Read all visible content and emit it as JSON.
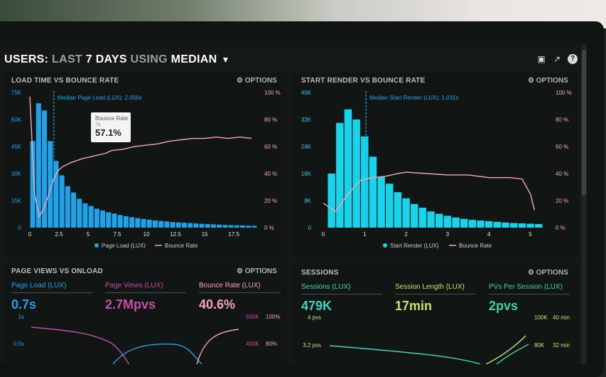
{
  "header": {
    "title_users": "USERS:",
    "title_last": "LAST",
    "title_days": "7 DAYS",
    "title_using": "USING",
    "title_median": "MEDIAN",
    "icons": [
      "monitor-icon",
      "share-icon",
      "help-icon"
    ]
  },
  "panels": {
    "load_time": {
      "title": "LOAD TIME VS BOUNCE RATE",
      "options": "OPTIONS"
    },
    "start_render": {
      "title": "START RENDER VS BOUNCE RATE",
      "options": "OPTIONS"
    },
    "page_views": {
      "title": "PAGE VIEWS VS ONLOAD",
      "options": "OPTIONS"
    },
    "sessions": {
      "title": "SESSIONS",
      "options": "OPTIONS"
    }
  },
  "tooltip": {
    "title": "Bounce Rate",
    "sub": "7s",
    "value": "57.1%"
  },
  "chart_data": [
    {
      "type": "bar",
      "title": "LOAD TIME VS BOUNCE RATE",
      "y_ticks": [
        "75K",
        "60K",
        "45K",
        "30K",
        "15K",
        "0"
      ],
      "y2_ticks": [
        "100 %",
        "80 %",
        "60 %",
        "40 %",
        "20 %",
        "0 %"
      ],
      "x_ticks": [
        "0",
        "2.5",
        "5",
        "7.5",
        "10",
        "12.5",
        "15",
        "17.5"
      ],
      "ylim": [
        0,
        75000
      ],
      "y2lim": [
        0,
        100
      ],
      "median_label": "Median Page Load (LUX): 2.056s",
      "median_x": 2.056,
      "xlim": [
        0,
        19.5
      ],
      "bar_width": 0.5,
      "series": [
        {
          "name": "Page Load (LUX)",
          "x": [
            0,
            0.5,
            1,
            1.5,
            2,
            2.5,
            3,
            3.5,
            4,
            4.5,
            5,
            5.5,
            6,
            6.5,
            7,
            7.5,
            8,
            8.5,
            9,
            9.5,
            10,
            10.5,
            11,
            11.5,
            12,
            12.5,
            13,
            13.5,
            14,
            14.5,
            15,
            15.5,
            16,
            16.5,
            17,
            17.5,
            18,
            18.5,
            19
          ],
          "values": [
            48000,
            69000,
            65000,
            48000,
            37000,
            29000,
            23000,
            19500,
            16000,
            13500,
            12000,
            10500,
            9500,
            8500,
            7800,
            7000,
            6300,
            5800,
            5300,
            4800,
            4400,
            4000,
            3700,
            3400,
            3100,
            2900,
            2700,
            2500,
            2300,
            2100,
            1950,
            1800,
            1650,
            1500,
            1400,
            1300,
            1200,
            1100,
            1000
          ]
        },
        {
          "name": "Bounce Rate",
          "x": [
            0,
            0.4,
            0.8,
            1.2,
            1.6,
            2,
            2.4,
            2.8,
            3.5,
            4.5,
            5.5,
            6.5,
            7,
            8,
            9,
            10,
            11,
            12,
            13,
            14,
            15,
            16,
            17,
            18,
            19
          ],
          "values": [
            97,
            25,
            8,
            14,
            24,
            35,
            42,
            45,
            48,
            51,
            53,
            55,
            57,
            58,
            60,
            61,
            62,
            64,
            65,
            66,
            66,
            67,
            66,
            67,
            66
          ]
        }
      ],
      "legend": [
        "Page Load (LUX)",
        "Bounce Rate"
      ]
    },
    {
      "type": "bar",
      "title": "START RENDER VS BOUNCE RATE",
      "y_ticks": [
        "40K",
        "32K",
        "24K",
        "16K",
        "8K",
        "0"
      ],
      "y2_ticks": [
        "100 %",
        "80 %",
        "60 %",
        "40 %",
        "20 %",
        "0 %"
      ],
      "x_ticks": [
        "0",
        "1",
        "2",
        "3",
        "4",
        "5"
      ],
      "ylim": [
        0,
        40000
      ],
      "y2lim": [
        0,
        100
      ],
      "median_label": "Median Start Render (LUX): 1.031s",
      "median_x": 1.031,
      "xlim": [
        0,
        5.3
      ],
      "bar_width": 0.2,
      "series": [
        {
          "name": "Start Render (LUX)",
          "x": [
            0.1,
            0.3,
            0.5,
            0.7,
            0.9,
            1.1,
            1.3,
            1.5,
            1.7,
            1.9,
            2.1,
            2.3,
            2.5,
            2.7,
            2.9,
            3.1,
            3.3,
            3.5,
            3.7,
            3.9,
            4.1,
            4.3,
            4.5,
            4.7,
            4.9,
            5.1
          ],
          "values": [
            16000,
            31000,
            35000,
            32000,
            27000,
            21000,
            15000,
            13000,
            10500,
            8700,
            7000,
            5900,
            4800,
            4100,
            3500,
            3000,
            2600,
            2300,
            2100,
            1900,
            1700,
            1500,
            1350,
            1250,
            1150,
            1050
          ]
        },
        {
          "name": "Bounce Rate",
          "x": [
            0,
            0.3,
            0.6,
            0.9,
            1.2,
            1.5,
            1.8,
            2,
            2.5,
            3,
            3.5,
            4,
            4.5,
            4.8,
            5,
            5.1
          ],
          "values": [
            18,
            12,
            25,
            35,
            37,
            38,
            40,
            41,
            40,
            39,
            39,
            37,
            37,
            36,
            25,
            13
          ]
        }
      ],
      "legend": [
        "Start Render (LUX)",
        "Bounce Rate"
      ]
    }
  ],
  "page_views_metrics": [
    {
      "label": "Page Load (LUX)",
      "value": "0.7s",
      "color": "#1da1f2"
    },
    {
      "label": "Page Views (LUX)",
      "value": "2.7Mpvs",
      "color": "#c64ea3"
    },
    {
      "label": "Bounce Rate (LUX)",
      "value": "40.6%",
      "color": "#f3a3ba"
    }
  ],
  "page_views_axes": {
    "left": [
      "1s",
      "0.5s"
    ],
    "right_k": [
      "500K",
      "400K"
    ],
    "right_pct": [
      "100%",
      "80%"
    ]
  },
  "sessions_metrics": [
    {
      "label": "Sessions (LUX)",
      "value": "479K",
      "color": "#3fd3c2"
    },
    {
      "label": "Session Length (LUX)",
      "value": "17min",
      "color": "#c6e36a"
    },
    {
      "label": "PVs Per Session (LUX)",
      "value": "2pvs",
      "color": "#3fd39a"
    }
  ],
  "sessions_axes": {
    "left": [
      "4 pvs",
      "3.2 pvs"
    ],
    "right_k": [
      "100K",
      "80K"
    ],
    "right_min": [
      "40 min",
      "32 min"
    ]
  },
  "colors": {
    "bar1": "#1fa3e8",
    "bar2": "#17d4ea",
    "bounce": "#f1a7bd",
    "median": "#1ea7e8"
  }
}
